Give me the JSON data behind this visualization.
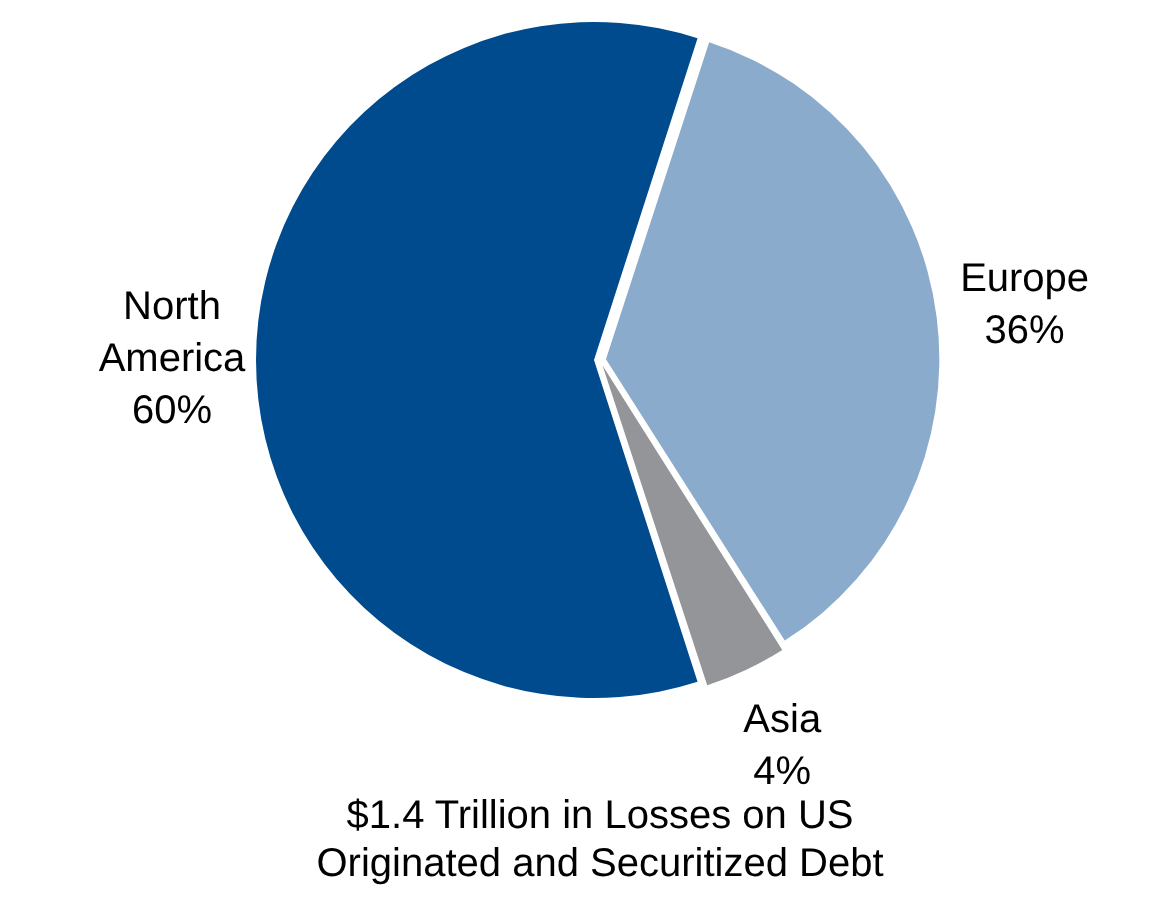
{
  "chart_data": {
    "type": "pie",
    "title": "$1.4 Trillion in Losses on US Originated and Securitized Debt",
    "categories": [
      "Europe",
      "Asia",
      "North America"
    ],
    "values": [
      36,
      4,
      60
    ],
    "value_labels": [
      "36%",
      "4%",
      "60%"
    ],
    "colors": [
      "#8aabcb",
      "#939598",
      "#004b8d"
    ],
    "legend": false
  }
}
